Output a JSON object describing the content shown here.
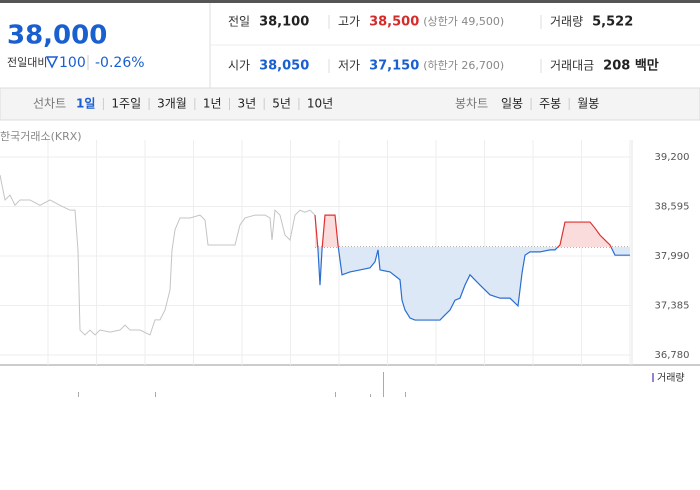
{
  "header": {
    "price": "38,000",
    "change_label": "전일대비",
    "change": "100",
    "change_pct": "-0.26%",
    "stats": [
      [
        {
          "label": "전일",
          "value": "38,100"
        },
        {
          "label": "고가",
          "value": "38,500",
          "note": "(상한가 49,500)"
        },
        {
          "label": "거래량",
          "value": "5,522"
        }
      ],
      [
        {
          "label": "시가",
          "value": "38,050"
        },
        {
          "label": "저가",
          "value": "37,150",
          "note": "(하한가 26,700)"
        },
        {
          "label": "거래대금",
          "value": "208 백만"
        }
      ]
    ]
  },
  "toolbar": {
    "line_label": "선차트",
    "line_periods": [
      "1일",
      "1주일",
      "3개월",
      "1년",
      "3년",
      "5년",
      "10년"
    ],
    "selected": 0,
    "candle_label": "봉차트",
    "candle_periods": [
      "일봉",
      "주봉",
      "월봉"
    ]
  },
  "chart_data": {
    "type": "line",
    "source": "한국거래소(KRX)",
    "baseline": 38100,
    "ylim": [
      36780,
      39200
    ],
    "yticks": [
      {
        "value": 36780,
        "label": "36,780"
      },
      {
        "value": 37385,
        "label": "37,385"
      },
      {
        "value": 37990,
        "label": "37,990"
      },
      {
        "value": 38595,
        "label": "38,595"
      },
      {
        "value": 39200,
        "label": "39,200"
      }
    ],
    "xlim": [
      0,
      630
    ],
    "grid": true,
    "x": [
      0,
      5,
      10,
      15,
      20,
      30,
      40,
      50,
      60,
      70,
      75,
      78,
      80,
      85,
      90,
      95,
      100,
      110,
      120,
      125,
      130,
      140,
      150,
      155,
      160,
      165,
      170,
      172,
      175,
      180,
      190,
      200,
      205,
      208,
      215,
      225,
      235,
      240,
      245,
      255,
      265,
      270,
      272,
      275,
      280,
      285,
      290,
      295,
      300,
      305,
      310,
      315,
      318,
      320,
      322,
      325,
      330,
      335,
      338,
      342,
      350,
      360,
      370,
      375,
      378,
      380,
      390,
      400,
      402,
      405,
      410,
      415,
      425,
      435,
      440,
      445,
      450,
      455,
      460,
      465,
      470,
      480,
      490,
      500,
      510,
      518,
      522,
      525,
      530,
      540,
      550,
      555,
      560,
      565,
      575,
      590,
      595,
      600,
      605,
      610,
      615,
      620,
      630
    ],
    "series": [
      {
        "color": "#c4c4c4",
        "values": [
          38980,
          38675,
          38735,
          38610,
          38675,
          38675,
          38610,
          38675,
          38610,
          38550,
          38550,
          38060,
          37085,
          37025,
          37085,
          37025,
          37085,
          37060,
          37085,
          37145,
          37085,
          37085,
          37025,
          37210,
          37210,
          37330,
          37575,
          38060,
          38310,
          38455,
          38455,
          38490,
          38430,
          38125,
          38125,
          38125,
          38125,
          38370,
          38455,
          38490,
          38490,
          38455,
          38185,
          38550,
          38490,
          38245,
          38185,
          38490,
          38550,
          38525,
          38550,
          38490,
          null,
          null,
          null,
          null,
          null,
          null,
          null,
          null,
          null,
          null,
          null,
          null,
          null,
          null,
          null,
          null,
          null,
          null,
          null,
          null,
          null,
          null,
          null,
          null,
          null,
          null,
          null,
          null,
          null,
          null,
          null,
          null,
          null,
          null,
          null,
          null,
          null,
          null,
          null,
          null,
          null,
          null,
          null,
          null,
          null,
          null,
          null,
          null,
          null,
          null,
          null
        ]
      },
      {
        "color": "#2a6ecf",
        "up_color": "#e03030",
        "values": [
          null,
          null,
          null,
          null,
          null,
          null,
          null,
          null,
          null,
          null,
          null,
          null,
          null,
          null,
          null,
          null,
          null,
          null,
          null,
          null,
          null,
          null,
          null,
          null,
          null,
          null,
          null,
          null,
          null,
          null,
          null,
          null,
          null,
          null,
          null,
          null,
          null,
          null,
          null,
          null,
          null,
          null,
          null,
          null,
          null,
          null,
          null,
          null,
          null,
          null,
          null,
          38050,
          38065,
          37635,
          38065,
          38490,
          38490,
          38490,
          38125,
          37760,
          37795,
          37820,
          37845,
          37920,
          38065,
          37820,
          37795,
          37700,
          37450,
          37330,
          37232,
          37207,
          37207,
          37207,
          37207,
          37270,
          37330,
          37450,
          37475,
          37635,
          37760,
          37635,
          37515,
          37475,
          37475,
          37380,
          37780,
          38000,
          38040,
          38040,
          38065,
          38065,
          38125,
          38405,
          38405,
          38405,
          38330,
          38245,
          38185,
          38125,
          38000,
          38000,
          38000
        ]
      }
    ],
    "volume": {
      "name": "거래량",
      "color": "#9b7fd1",
      "x": [
        78,
        155,
        335,
        370,
        383,
        405
      ],
      "values": [
        5,
        5,
        5,
        3,
        25,
        5
      ]
    }
  }
}
